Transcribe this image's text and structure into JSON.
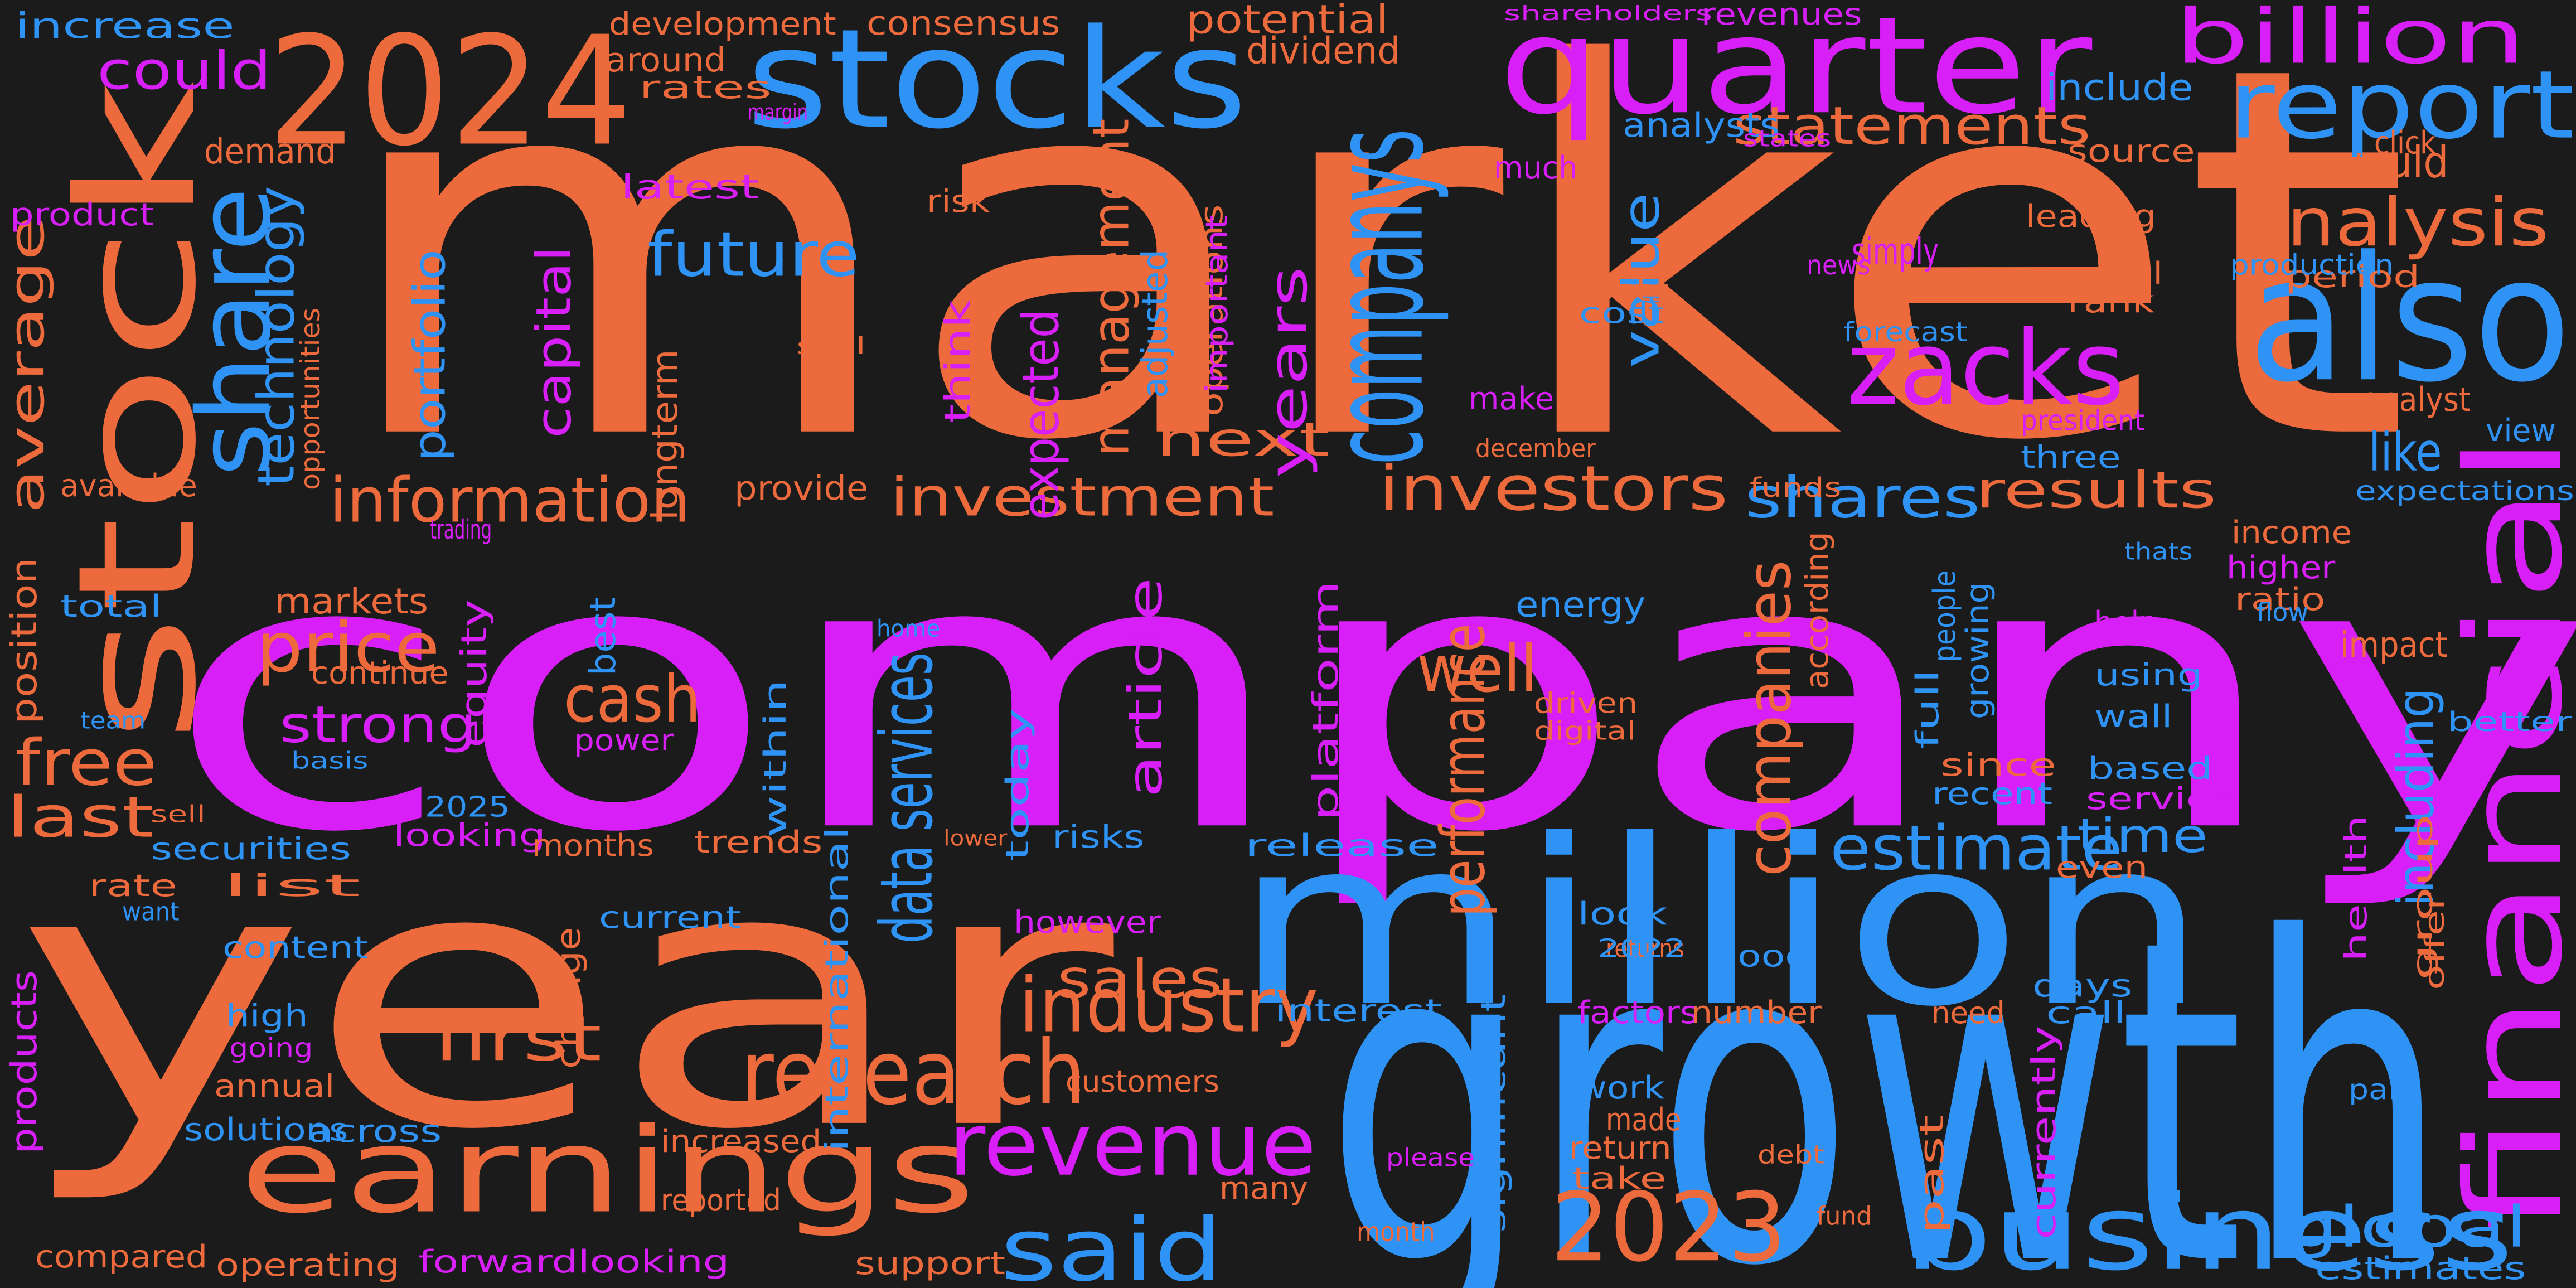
{
  "colors": {
    "background": "#1b1b1b",
    "orange": "#ec6a3c",
    "magenta": "#d91ff7",
    "blue": "#2e93f5"
  },
  "words": [
    {
      "text": "market",
      "color": "orange"
    },
    {
      "text": "company",
      "color": "magenta"
    },
    {
      "text": "year",
      "color": "orange"
    },
    {
      "text": "growth",
      "color": "blue"
    },
    {
      "text": "million",
      "color": "blue"
    },
    {
      "text": "stock",
      "color": "orange"
    },
    {
      "text": "also",
      "color": "blue"
    },
    {
      "text": "quarter",
      "color": "magenta"
    },
    {
      "text": "2024",
      "color": "orange"
    },
    {
      "text": "stocks",
      "color": "blue"
    },
    {
      "text": "earnings",
      "color": "orange"
    },
    {
      "text": "financial",
      "color": "magenta"
    },
    {
      "text": "billion",
      "color": "magenta"
    },
    {
      "text": "report",
      "color": "blue"
    },
    {
      "text": "zacks",
      "color": "magenta"
    },
    {
      "text": "companys",
      "color": "blue"
    },
    {
      "text": "business",
      "color": "blue"
    },
    {
      "text": "2023",
      "color": "orange"
    },
    {
      "text": "revenue",
      "color": "magenta"
    },
    {
      "text": "said",
      "color": "blue"
    },
    {
      "text": "share",
      "color": "blue"
    },
    {
      "text": "data services",
      "color": "blue"
    },
    {
      "text": "research",
      "color": "orange"
    },
    {
      "text": "industry",
      "color": "orange"
    },
    {
      "text": "investment",
      "color": "orange"
    },
    {
      "text": "information",
      "color": "orange"
    },
    {
      "text": "analysis",
      "color": "orange"
    },
    {
      "text": "statements",
      "color": "orange"
    },
    {
      "text": "investors",
      "color": "orange"
    },
    {
      "text": "results",
      "color": "orange"
    },
    {
      "text": "estimate",
      "color": "blue"
    },
    {
      "text": "including",
      "color": "blue"
    },
    {
      "text": "global",
      "color": "blue"
    },
    {
      "text": "time",
      "color": "blue"
    },
    {
      "text": "companies",
      "color": "orange"
    },
    {
      "text": "performance",
      "color": "orange"
    },
    {
      "text": "article",
      "color": "magenta"
    },
    {
      "text": "price",
      "color": "orange"
    },
    {
      "text": "could",
      "color": "magenta"
    },
    {
      "text": "future",
      "color": "blue"
    },
    {
      "text": "value",
      "color": "blue"
    },
    {
      "text": "would",
      "color": "orange"
    },
    {
      "text": "shares",
      "color": "blue"
    },
    {
      "text": "like",
      "color": "blue"
    },
    {
      "text": "first",
      "color": "orange"
    },
    {
      "text": "sales",
      "color": "orange"
    },
    {
      "text": "strong",
      "color": "magenta"
    },
    {
      "text": "cash",
      "color": "orange"
    },
    {
      "text": "free",
      "color": "orange"
    },
    {
      "text": "last",
      "color": "orange"
    },
    {
      "text": "well",
      "color": "orange"
    },
    {
      "text": "next",
      "color": "orange"
    },
    {
      "text": "years",
      "color": "magenta"
    },
    {
      "text": "expected",
      "color": "magenta"
    },
    {
      "text": "management",
      "color": "orange"
    },
    {
      "text": "capital",
      "color": "magenta"
    },
    {
      "text": "technology",
      "color": "blue"
    },
    {
      "text": "average",
      "color": "orange"
    },
    {
      "text": "increase",
      "color": "blue"
    },
    {
      "text": "development",
      "color": "orange"
    },
    {
      "text": "consensus",
      "color": "orange"
    },
    {
      "text": "potential",
      "color": "orange"
    },
    {
      "text": "shareholders",
      "color": "magenta"
    },
    {
      "text": "revenues",
      "color": "magenta"
    },
    {
      "text": "include",
      "color": "blue"
    },
    {
      "text": "around",
      "color": "orange"
    },
    {
      "text": "rates",
      "color": "orange"
    },
    {
      "text": "margin",
      "color": "magenta"
    },
    {
      "text": "dividend",
      "color": "orange"
    },
    {
      "text": "analysts",
      "color": "blue"
    },
    {
      "text": "states",
      "color": "magenta"
    },
    {
      "text": "click",
      "color": "orange"
    },
    {
      "text": "demand",
      "color": "orange"
    },
    {
      "text": "latest",
      "color": "magenta"
    },
    {
      "text": "risk",
      "color": "orange"
    },
    {
      "text": "source",
      "color": "orange"
    },
    {
      "text": "product",
      "color": "magenta"
    },
    {
      "text": "much",
      "color": "magenta"
    },
    {
      "text": "leading",
      "color": "orange"
    },
    {
      "text": "period",
      "color": "orange"
    },
    {
      "text": "simply",
      "color": "magenta"
    },
    {
      "text": "news",
      "color": "magenta"
    },
    {
      "text": "production",
      "color": "blue"
    },
    {
      "text": "general",
      "color": "orange"
    },
    {
      "text": "costs",
      "color": "orange"
    },
    {
      "text": "cost",
      "color": "blue"
    },
    {
      "text": "rank",
      "color": "orange"
    },
    {
      "text": "forecast",
      "color": "blue"
    },
    {
      "text": "still",
      "color": "orange"
    },
    {
      "text": "make",
      "color": "magenta"
    },
    {
      "text": "analyst",
      "color": "orange"
    },
    {
      "text": "president",
      "color": "magenta"
    },
    {
      "text": "view",
      "color": "blue"
    },
    {
      "text": "three",
      "color": "blue"
    },
    {
      "text": "december",
      "color": "orange"
    },
    {
      "text": "funds",
      "color": "orange"
    },
    {
      "text": "available",
      "color": "orange"
    },
    {
      "text": "expectations",
      "color": "blue"
    },
    {
      "text": "trading",
      "color": "magenta"
    },
    {
      "text": "provide",
      "color": "orange"
    },
    {
      "text": "income",
      "color": "orange"
    },
    {
      "text": "higher",
      "color": "magenta"
    },
    {
      "text": "thats",
      "color": "blue"
    },
    {
      "text": "ratio",
      "color": "orange"
    },
    {
      "text": "markets",
      "color": "orange"
    },
    {
      "text": "total",
      "color": "blue"
    },
    {
      "text": "energy",
      "color": "blue"
    },
    {
      "text": "flow",
      "color": "blue"
    },
    {
      "text": "help",
      "color": "magenta"
    },
    {
      "text": "home",
      "color": "blue"
    },
    {
      "text": "impact",
      "color": "orange"
    },
    {
      "text": "continue",
      "color": "orange"
    },
    {
      "text": "using",
      "color": "blue"
    },
    {
      "text": "team",
      "color": "blue"
    },
    {
      "text": "driven",
      "color": "orange"
    },
    {
      "text": "digital",
      "color": "orange"
    },
    {
      "text": "wall",
      "color": "blue"
    },
    {
      "text": "better",
      "color": "blue"
    },
    {
      "text": "basis",
      "color": "blue"
    },
    {
      "text": "power",
      "color": "magenta"
    },
    {
      "text": "since",
      "color": "orange"
    },
    {
      "text": "based",
      "color": "blue"
    },
    {
      "text": "recent",
      "color": "blue"
    },
    {
      "text": "service",
      "color": "magenta"
    },
    {
      "text": "sell",
      "color": "orange"
    },
    {
      "text": "2025",
      "color": "blue"
    },
    {
      "text": "looking",
      "color": "magenta"
    },
    {
      "text": "securities",
      "color": "blue"
    },
    {
      "text": "months",
      "color": "orange"
    },
    {
      "text": "trends",
      "color": "orange"
    },
    {
      "text": "lower",
      "color": "orange"
    },
    {
      "text": "risks",
      "color": "blue"
    },
    {
      "text": "release",
      "color": "blue"
    },
    {
      "text": "even",
      "color": "orange"
    },
    {
      "text": "rate",
      "color": "orange"
    },
    {
      "text": "want",
      "color": "blue"
    },
    {
      "text": "list",
      "color": "orange"
    },
    {
      "text": "current",
      "color": "blue"
    },
    {
      "text": "content",
      "color": "blue"
    },
    {
      "text": "however",
      "color": "magenta"
    },
    {
      "text": "look",
      "color": "blue"
    },
    {
      "text": "returns",
      "color": "orange"
    },
    {
      "text": "2022",
      "color": "blue"
    },
    {
      "text": "good",
      "color": "blue"
    },
    {
      "text": "days",
      "color": "blue"
    },
    {
      "text": "high",
      "color": "blue"
    },
    {
      "text": "going",
      "color": "magenta"
    },
    {
      "text": "interest",
      "color": "blue"
    },
    {
      "text": "factors",
      "color": "magenta"
    },
    {
      "text": "number",
      "color": "orange"
    },
    {
      "text": "need",
      "color": "orange"
    },
    {
      "text": "call",
      "color": "blue"
    },
    {
      "text": "annual",
      "color": "orange"
    },
    {
      "text": "customers",
      "color": "orange"
    },
    {
      "text": "work",
      "color": "blue"
    },
    {
      "text": "made",
      "color": "orange"
    },
    {
      "text": "part",
      "color": "blue"
    },
    {
      "text": "solutions",
      "color": "blue"
    },
    {
      "text": "across",
      "color": "blue"
    },
    {
      "text": "increased",
      "color": "orange"
    },
    {
      "text": "return",
      "color": "orange"
    },
    {
      "text": "please",
      "color": "magenta"
    },
    {
      "text": "debt",
      "color": "orange"
    },
    {
      "text": "take",
      "color": "orange"
    },
    {
      "text": "reported",
      "color": "orange"
    },
    {
      "text": "many",
      "color": "orange"
    },
    {
      "text": "month",
      "color": "orange"
    },
    {
      "text": "fund",
      "color": "orange"
    },
    {
      "text": "compared",
      "color": "orange"
    },
    {
      "text": "operating",
      "color": "orange"
    },
    {
      "text": "forwardlooking",
      "color": "magenta"
    },
    {
      "text": "support",
      "color": "orange"
    },
    {
      "text": "estimates",
      "color": "blue"
    },
    {
      "text": "portfolio",
      "color": "blue"
    },
    {
      "text": "opportunities",
      "color": "orange"
    },
    {
      "text": "longterm",
      "color": "orange"
    },
    {
      "text": "think",
      "color": "magenta"
    },
    {
      "text": "adjusted",
      "color": "blue"
    },
    {
      "text": "operations",
      "color": "orange"
    },
    {
      "text": "important",
      "color": "magenta"
    },
    {
      "text": "position",
      "color": "orange"
    },
    {
      "text": "equity",
      "color": "magenta"
    },
    {
      "text": "best",
      "color": "blue"
    },
    {
      "text": "within",
      "color": "blue"
    },
    {
      "text": "today",
      "color": "blue"
    },
    {
      "text": "platform",
      "color": "magenta"
    },
    {
      "text": "according",
      "color": "orange"
    },
    {
      "text": "full",
      "color": "blue"
    },
    {
      "text": "people",
      "color": "blue"
    },
    {
      "text": "growing",
      "color": "blue"
    },
    {
      "text": "international",
      "color": "blue"
    },
    {
      "text": "change",
      "color": "orange"
    },
    {
      "text": "significant",
      "color": "blue"
    },
    {
      "text": "past",
      "color": "orange"
    },
    {
      "text": "currently",
      "color": "magenta"
    },
    {
      "text": "health",
      "color": "magenta"
    },
    {
      "text": "group",
      "color": "orange"
    },
    {
      "text": "offer",
      "color": "orange"
    },
    {
      "text": "products",
      "color": "magenta"
    }
  ]
}
